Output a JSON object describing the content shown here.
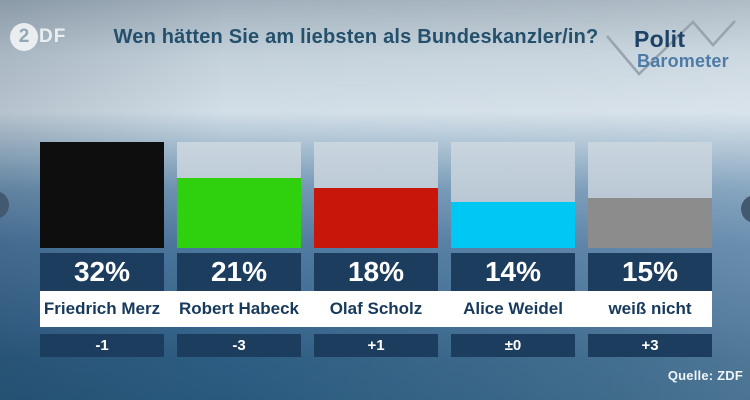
{
  "header": {
    "zdf_logo": {
      "circle_glyph": "2",
      "letters": "DF"
    },
    "title": "Wen hätten Sie am liebsten als Bundeskanzler/in?",
    "brand": {
      "line1": "Polit",
      "line2": "Barometer"
    }
  },
  "chart_data": {
    "type": "bar",
    "title": "Wen hätten Sie am liebsten als Bundeskanzler/in?",
    "categories": [
      "Friedrich Merz",
      "Robert Habeck",
      "Olaf Scholz",
      "Alice Weidel",
      "weiß nicht"
    ],
    "values": [
      32,
      21,
      18,
      14,
      15
    ],
    "value_labels": [
      "32%",
      "21%",
      "18%",
      "14%",
      "15%"
    ],
    "changes": [
      "-1",
      "-3",
      "+1",
      "±0",
      "+3"
    ],
    "bar_colors": [
      "#0e0e0e",
      "#2fd00d",
      "#c9160a",
      "#00c8f5",
      "#8c8c8c"
    ],
    "ylim": [
      0,
      32
    ],
    "unit": "%",
    "legend": "none",
    "grid": "off"
  },
  "footer": {
    "source": "Quelle: ZDF"
  },
  "colors": {
    "label_box_navy": "#1d3d5e",
    "name_band_white": "#ffffff",
    "name_text_navy": "#173a5c",
    "value_text_white": "#ffffff",
    "track_light": "#bcc9d6"
  }
}
